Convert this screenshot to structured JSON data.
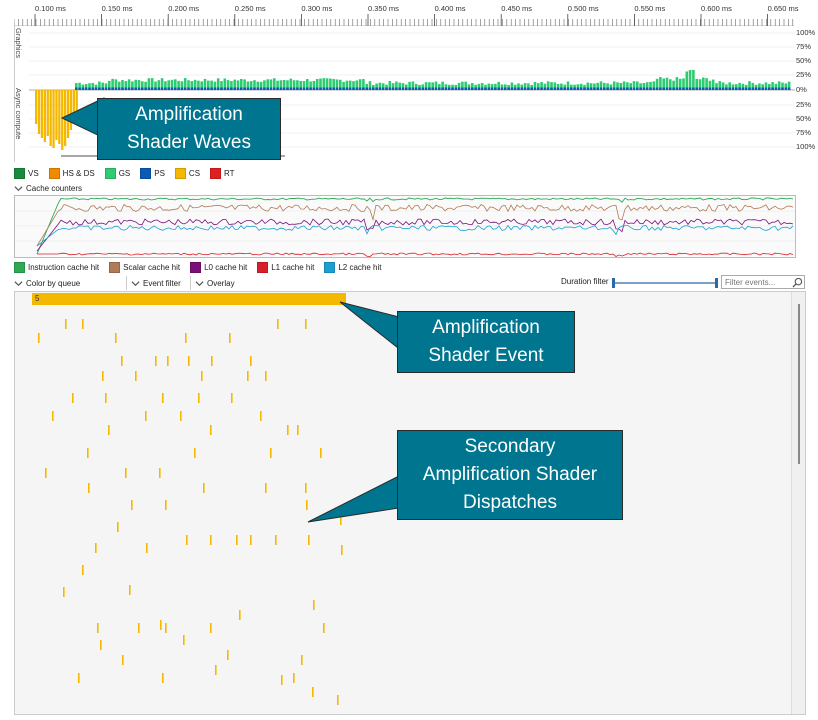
{
  "ruler": {
    "ticks": [
      "0.100 ms",
      "0.150 ms",
      "0.200 ms",
      "0.250 ms",
      "0.300 ms",
      "0.350 ms",
      "0.400 ms",
      "0.450 ms",
      "0.500 ms",
      "0.550 ms",
      "0.600 ms",
      "0.650 ms"
    ]
  },
  "occupancy": {
    "graphics_label": "Graphics",
    "async_label": "Async compute",
    "graphics_pct": [
      "100%",
      "75%",
      "50%",
      "25%",
      "0%"
    ],
    "async_pct": [
      "25%",
      "50%",
      "75%",
      "100%"
    ]
  },
  "wave_legend": [
    {
      "label": "VS",
      "color": "#1a8a3c"
    },
    {
      "label": "HS & DS",
      "color": "#f08a00"
    },
    {
      "label": "GS",
      "color": "#2ecc71"
    },
    {
      "label": "PS",
      "color": "#0a5bb5"
    },
    {
      "label": "CS",
      "color": "#f5b800"
    },
    {
      "label": "RT",
      "color": "#e02020"
    }
  ],
  "cache_counters": {
    "header": "Cache counters",
    "legend": [
      {
        "label": "Instruction cache hit",
        "color": "#2eaa55"
      },
      {
        "label": "Scalar cache hit",
        "color": "#b07a55"
      },
      {
        "label": "L0 cache hit",
        "color": "#7a0f7a"
      },
      {
        "label": "L1 cache hit",
        "color": "#d8202a"
      },
      {
        "label": "L2 cache hit",
        "color": "#1aa0d0"
      }
    ]
  },
  "toolbar": {
    "color_by": "Color by queue",
    "event_filter": "Event filter",
    "overlay": "Overlay",
    "duration_filter": "Duration filter",
    "filter_placeholder": "Filter events..."
  },
  "events": {
    "main_event_label": "5"
  },
  "callouts": {
    "waves": [
      "Amplification",
      "Shader Waves"
    ],
    "event": [
      "Amplification",
      "Shader Event"
    ],
    "dispatches": [
      "Secondary",
      "Amplification Shader",
      "Dispatches"
    ]
  },
  "colors": {
    "accent": "#00758f",
    "cs": "#f5b800"
  }
}
